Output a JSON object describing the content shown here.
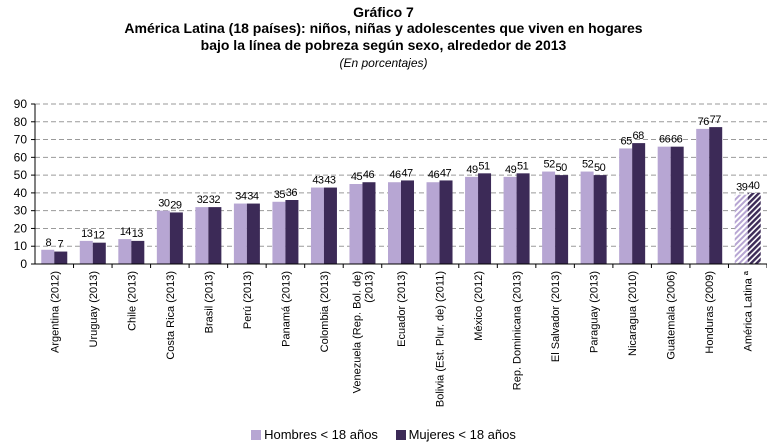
{
  "header": {
    "graphic_number": "Gráfico 7",
    "title_line1": "América Latina (18 países): niños, niñas y adolescentes que viven en hogares",
    "title_line2": "bajo la línea de pobreza según sexo, alrededor de 2013",
    "subtitle": "(En porcentajes)"
  },
  "legend": {
    "hombres": "Hombres < 18 años",
    "mujeres": "Mujeres < 18 años"
  },
  "colors": {
    "hombres": "#b7a6d3",
    "mujeres": "#3c2a57",
    "grid": "#9a9a9a",
    "axis": "#000000"
  },
  "chart_data": {
    "type": "bar",
    "title": "América Latina (18 países): niños, niñas y adolescentes que viven en hogares bajo la línea de pobreza según sexo, alrededor de 2013",
    "subtitle": "(En porcentajes)",
    "xlabel": "",
    "ylabel": "",
    "ylim": [
      0,
      90
    ],
    "yticks": [
      0,
      10,
      20,
      30,
      40,
      50,
      60,
      70,
      80,
      90
    ],
    "grid": true,
    "legend_position": "bottom",
    "categories": [
      "Argentina (2012)",
      "Uruguay (2013)",
      "Chile (2013)",
      "Costa Rica (2013)",
      "Brasil (2013)",
      "Perú (2013)",
      "Panamá (2013)",
      "Colombia (2013)",
      "Venezuela (Rep. Bol. de) (2013)",
      "Ecuador (2013)",
      "Bolivia (Est. Plur. de) (2011)",
      "México (2012)",
      "Rep. Dominicana (2013)",
      "El Salvador (2013)",
      "Paraguay (2013)",
      "Nicaragua (2010)",
      "Guatemala (2006)",
      "Honduras (2009)",
      "América Latina ª"
    ],
    "category_lines": [
      [
        "Argentina (2012)"
      ],
      [
        "Uruguay (2013)"
      ],
      [
        "Chile (2013)"
      ],
      [
        "Costa Rica (2013)"
      ],
      [
        "Brasil (2013)"
      ],
      [
        "Perú (2013)"
      ],
      [
        "Panamá (2013)"
      ],
      [
        "Colombia (2013)"
      ],
      [
        "Venezuela (Rep. Bol. de)",
        "(2013)"
      ],
      [
        "Ecuador (2013)"
      ],
      [
        "Bolivia (Est. Plur. de) (2011)"
      ],
      [
        "México (2012)"
      ],
      [
        "Rep. Dominicana (2013)"
      ],
      [
        "El Salvador (2013)"
      ],
      [
        "Paraguay (2013)"
      ],
      [
        "Nicaragua (2010)"
      ],
      [
        "Guatemala (2006)"
      ],
      [
        "Honduras (2009)"
      ],
      [
        "América Latina ª"
      ]
    ],
    "series": [
      {
        "name": "Hombres < 18 años",
        "values": [
          8,
          13,
          14,
          30,
          32,
          34,
          35,
          43,
          45,
          46,
          46,
          49,
          49,
          52,
          52,
          65,
          66,
          76,
          39
        ]
      },
      {
        "name": "Mujeres < 18 años",
        "values": [
          7,
          12,
          13,
          29,
          32,
          34,
          36,
          43,
          46,
          47,
          47,
          51,
          51,
          50,
          50,
          68,
          66,
          77,
          40
        ]
      }
    ],
    "hatched_categories": [
      "América Latina ª"
    ]
  }
}
